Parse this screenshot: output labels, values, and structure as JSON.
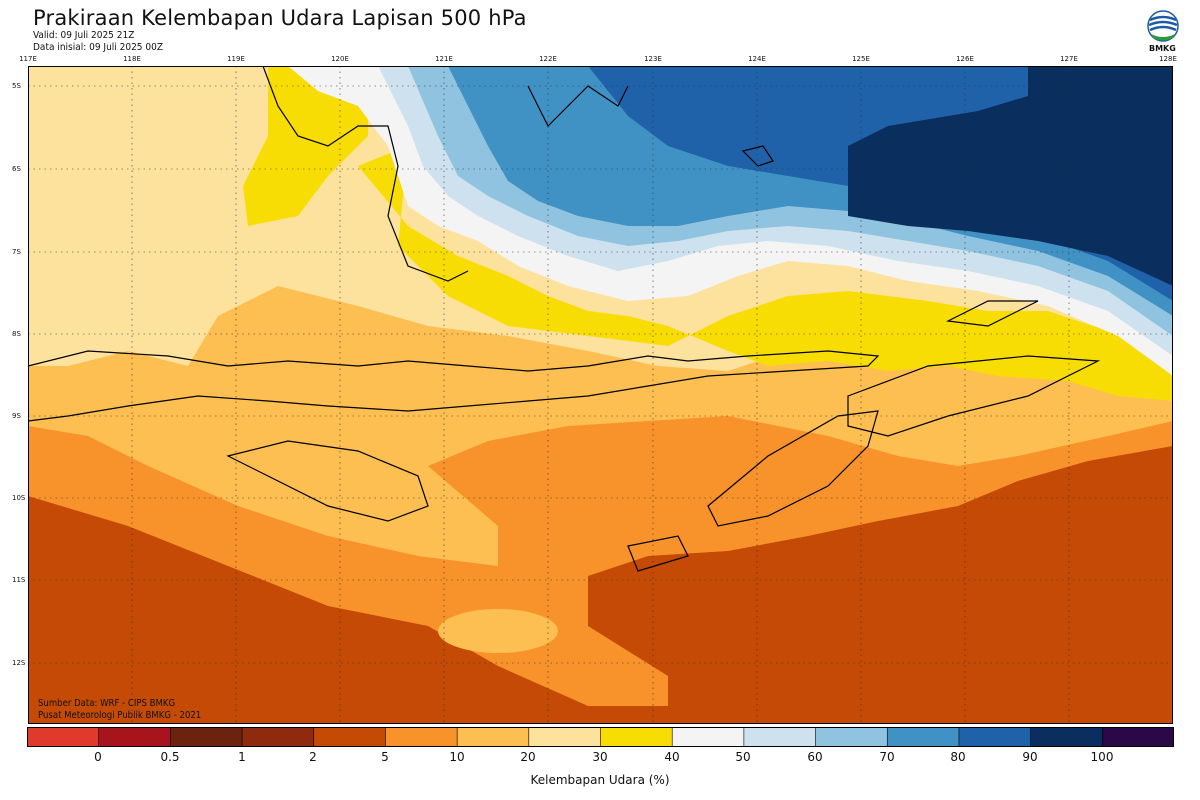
{
  "header": {
    "title": "Prakiraan Kelembapan Udara Lapisan 500 hPa",
    "valid": "Valid: 09 Juli 2025 21Z",
    "initial": "Data inisial: 09 Juli 2025 00Z"
  },
  "logo": {
    "text": "BMKG",
    "icon": "bmkg-logo-icon"
  },
  "axes": {
    "x_ticks": [
      "117E",
      "118E",
      "119E",
      "120E",
      "121E",
      "122E",
      "123E",
      "124E",
      "125E",
      "126E",
      "127E",
      "128E"
    ],
    "y_ticks": [
      "5S",
      "6S",
      "7S",
      "8S",
      "9S",
      "10S",
      "11S",
      "12S"
    ]
  },
  "credits": {
    "source": "Sumber Data: WRF - CIPS BMKG",
    "publisher": "Pusat Meteorologi Publik BMKG - 2021"
  },
  "legend": {
    "title": "Kelembapan Udara (%)",
    "labels": [
      "0",
      "0.5",
      "1",
      "2",
      "5",
      "10",
      "20",
      "30",
      "40",
      "50",
      "60",
      "70",
      "80",
      "90",
      "100"
    ],
    "colors": [
      "#e03a2c",
      "#a8141b",
      "#6b2310",
      "#8e2a0e",
      "#c44a05",
      "#f7932a",
      "#fdbe52",
      "#fde29e",
      "#f8dd05",
      "#f4f4f4",
      "#cde2ee",
      "#90c3df",
      "#4192c4",
      "#1f62a9",
      "#0a2e5e",
      "#2b0848"
    ]
  },
  "map_colors": {
    "driest": "#c44a05",
    "dry": "#f7932a",
    "semi_dry": "#fdbe52",
    "light": "#fde29e",
    "yellow": "#f8dd05",
    "white": "#f4f4f4",
    "pale_blue": "#cde2ee",
    "light_blue": "#90c3df",
    "mid_blue": "#4192c4",
    "blue": "#1f62a9",
    "navy": "#0a2e5e"
  }
}
